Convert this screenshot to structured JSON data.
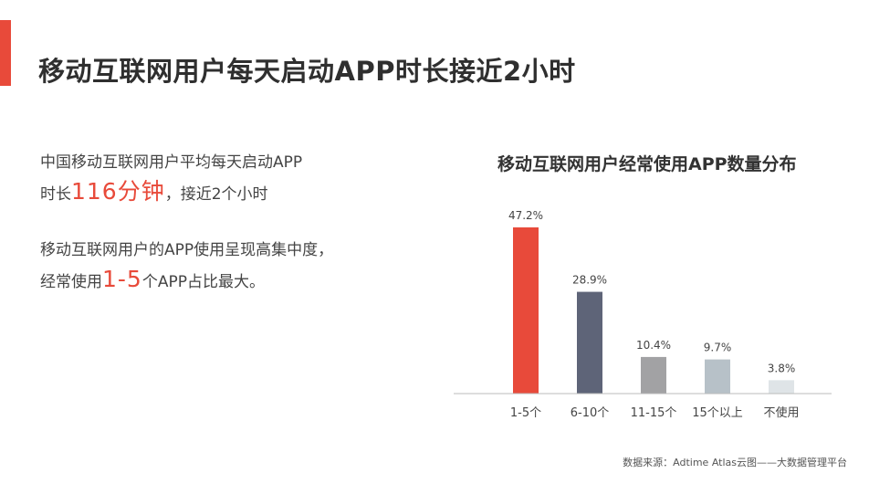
{
  "title": "移动互联网用户每天启动APP时长接近2小时",
  "paragraph1": {
    "line1": "中国移动互联网用户平均每天启动APP",
    "line2_prefix": "时长",
    "line2_highlight": "116分钟",
    "line2_suffix": "，接近2个小时"
  },
  "paragraph2": {
    "line1": "移动互联网用户的APP使用呈现高集中度，",
    "line2_prefix": "经常使用",
    "line2_highlight": "1-5",
    "line2_suffix": "个APP占比最大。"
  },
  "source": "数据来源：Adtime Atlas云图——大数据管理平台",
  "colors": {
    "accent": "#e84a3a",
    "bars": [
      "#e84a3a",
      "#5e6478",
      "#a2a2a4",
      "#b7c1c8",
      "#dfe4e7"
    ]
  },
  "chart_data": {
    "type": "bar",
    "title": "移动互联网用户经常使用APP数量分布",
    "categories": [
      "1-5个",
      "6-10个",
      "11-15个",
      "15个以上",
      "不使用"
    ],
    "values": [
      47.2,
      28.9,
      10.4,
      9.7,
      3.8
    ],
    "value_labels": [
      "47.2%",
      "28.9%",
      "10.4%",
      "9.7%",
      "3.8%"
    ],
    "unit": "%",
    "ylim": [
      0,
      50
    ],
    "grid": false,
    "legend": "none"
  }
}
